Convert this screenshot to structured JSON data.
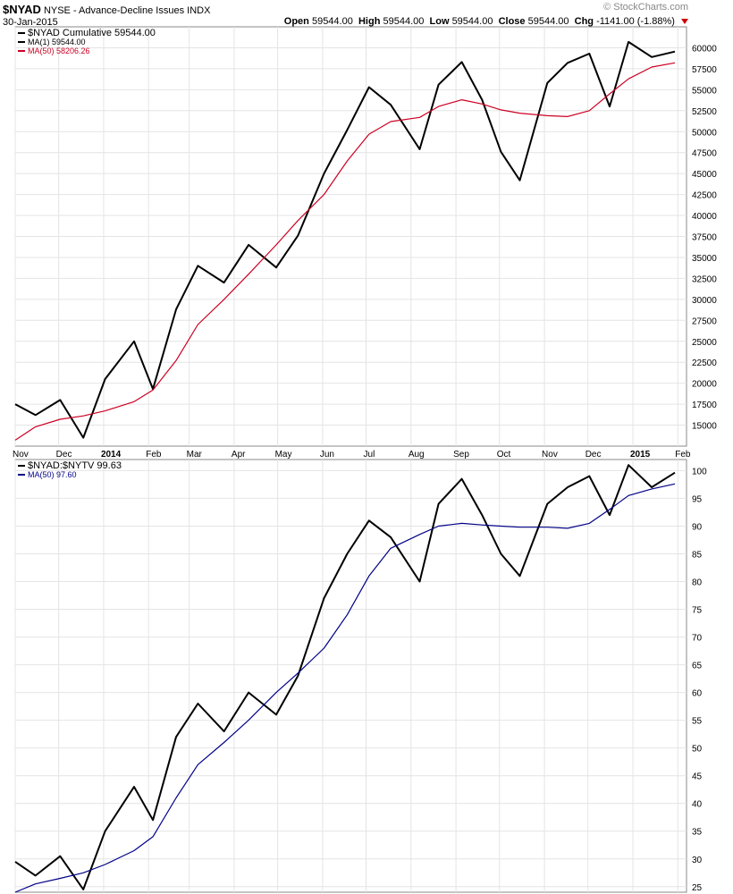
{
  "header": {
    "symbol": "$NYAD",
    "description": "NYSE - Advance-Decline Issues",
    "exchange": "INDX",
    "date": "30-Jan-2015",
    "copyright": "© StockCharts.com",
    "open_label": "Open",
    "open_value": "59544.00",
    "high_label": "High",
    "high_value": "59544.00",
    "low_label": "Low",
    "low_value": "59544.00",
    "close_label": "Close",
    "close_value": "59544.00",
    "chg_label": "Chg",
    "chg_value": "-1141.00 (-1.88%)"
  },
  "colors": {
    "price": "#000000",
    "ma_top": "#cc0022",
    "ma_bottom": "#000088",
    "grid": "#e4e4e4",
    "frame": "#888888",
    "down": "#cc0000"
  },
  "x_axis_labels": [
    "Nov",
    "Dec",
    "2014",
    "Feb",
    "Mar",
    "Apr",
    "May",
    "Jun",
    "Jul",
    "Aug",
    "Sep",
    "Oct",
    "Nov",
    "Dec",
    "2015",
    "Feb"
  ],
  "chart_data": [
    {
      "type": "line",
      "legend": [
        "$NYAD Cumulative 59544.00",
        "MA(1) 59544.00",
        "MA(50) 58206.26"
      ],
      "ylim": [
        12500,
        62500
      ],
      "y_ticks": [
        15000,
        17500,
        20000,
        22500,
        25000,
        27500,
        30000,
        32500,
        35000,
        37500,
        40000,
        42500,
        45000,
        47500,
        50000,
        52500,
        55000,
        57500,
        60000
      ],
      "y_tick_labels": [
        "15000",
        "17500",
        "20000",
        "22500",
        "25000",
        "27500",
        "30000",
        "32500",
        "35000",
        "37500",
        "40000",
        "42500",
        "45000",
        "47500",
        "50000",
        "52500",
        "55000",
        "57500",
        "60000"
      ],
      "x": [
        "2013-11-01",
        "2013-11-15",
        "2013-12-02",
        "2013-12-18",
        "2014-01-02",
        "2014-01-22",
        "2014-02-04",
        "2014-02-20",
        "2014-03-07",
        "2014-03-25",
        "2014-04-11",
        "2014-04-30",
        "2014-05-15",
        "2014-06-02",
        "2014-06-18",
        "2014-07-03",
        "2014-07-18",
        "2014-08-07",
        "2014-08-20",
        "2014-09-05",
        "2014-09-19",
        "2014-10-02",
        "2014-10-15",
        "2014-11-03",
        "2014-11-17",
        "2014-12-02",
        "2014-12-16",
        "2014-12-29",
        "2015-01-14",
        "2015-01-30"
      ],
      "series": [
        {
          "name": "$NYAD Cumulative",
          "values": [
            17500,
            16200,
            18000,
            13500,
            20500,
            25000,
            19300,
            28800,
            34000,
            32000,
            36500,
            33800,
            37600,
            45000,
            50200,
            55300,
            53200,
            47900,
            55600,
            58300,
            53800,
            47600,
            44200,
            55800,
            58200,
            59300,
            53000,
            60700,
            58900,
            59544
          ]
        },
        {
          "name": "MA(50)",
          "values": [
            13200,
            14800,
            15700,
            16100,
            16700,
            17800,
            19200,
            22700,
            27000,
            30000,
            33000,
            36500,
            39400,
            42500,
            46500,
            49700,
            51200,
            51700,
            53000,
            53800,
            53300,
            52600,
            52200,
            51900,
            51800,
            52500,
            54500,
            56300,
            57700,
            58206
          ]
        }
      ]
    },
    {
      "type": "line",
      "legend": [
        "$NYAD:$NYTV 99.63",
        "MA(50) 97.60"
      ],
      "ylim": [
        24,
        102
      ],
      "y_ticks": [
        25,
        30,
        35,
        40,
        45,
        50,
        55,
        60,
        65,
        70,
        75,
        80,
        85,
        90,
        95,
        100
      ],
      "y_tick_labels": [
        "25",
        "30",
        "35",
        "40",
        "45",
        "50",
        "55",
        "60",
        "65",
        "70",
        "75",
        "80",
        "85",
        "90",
        "95",
        "100"
      ],
      "x": [
        "2013-11-01",
        "2013-11-15",
        "2013-12-02",
        "2013-12-18",
        "2014-01-02",
        "2014-01-22",
        "2014-02-04",
        "2014-02-20",
        "2014-03-07",
        "2014-03-25",
        "2014-04-11",
        "2014-04-30",
        "2014-05-15",
        "2014-06-02",
        "2014-06-18",
        "2014-07-03",
        "2014-07-18",
        "2014-08-07",
        "2014-08-20",
        "2014-09-05",
        "2014-09-19",
        "2014-10-02",
        "2014-10-15",
        "2014-11-03",
        "2014-11-17",
        "2014-12-02",
        "2014-12-16",
        "2014-12-29",
        "2015-01-14",
        "2015-01-30"
      ],
      "series": [
        {
          "name": "$NYAD:$NYTV",
          "values": [
            29.5,
            27,
            30.5,
            24.5,
            35,
            43,
            37,
            52,
            58,
            53,
            60,
            56,
            63,
            77,
            85,
            91,
            88,
            80,
            94,
            98.5,
            92,
            85,
            81,
            94,
            97,
            99,
            92,
            101,
            97,
            99.63
          ]
        },
        {
          "name": "MA(50)",
          "values": [
            24,
            25.5,
            26.5,
            27.5,
            29,
            31.5,
            34,
            41,
            47,
            51,
            55,
            60,
            63.5,
            68,
            74,
            81,
            86,
            88.5,
            90,
            90.5,
            90.2,
            90,
            89.8,
            89.8,
            89.6,
            90.5,
            93,
            95.5,
            96.7,
            97.6
          ]
        }
      ]
    }
  ]
}
